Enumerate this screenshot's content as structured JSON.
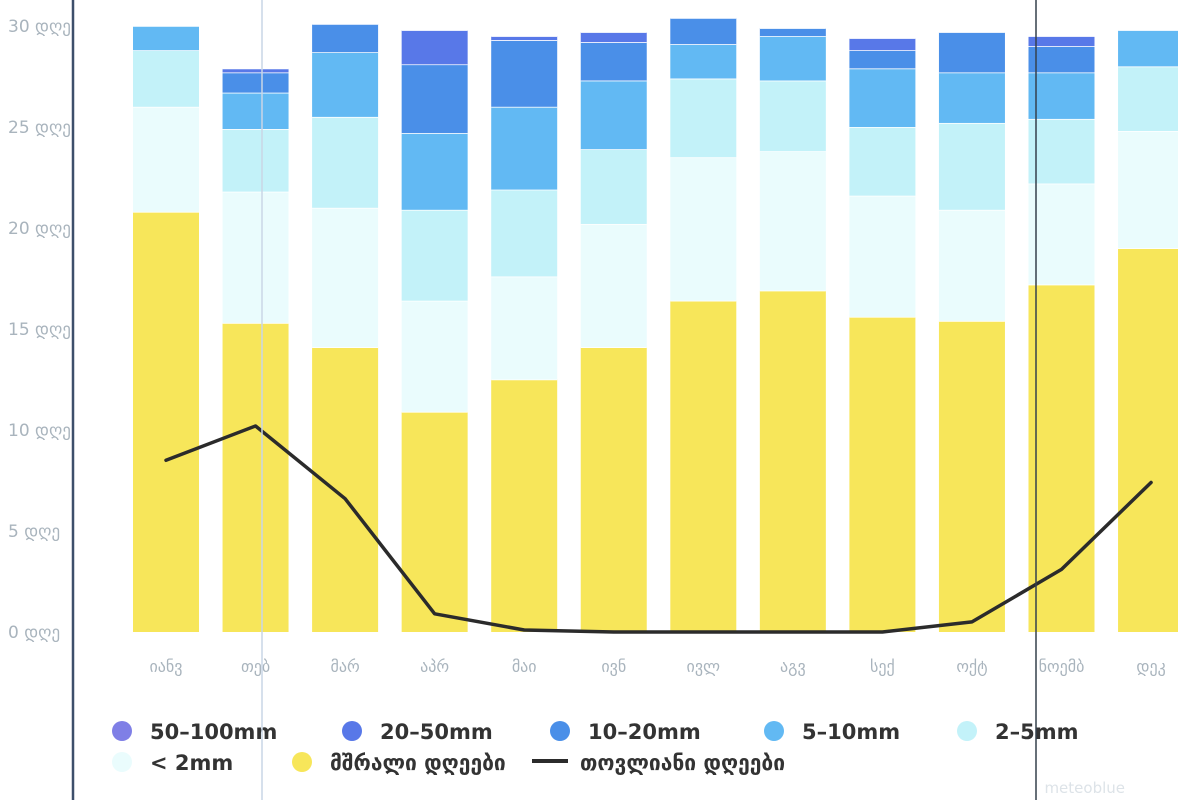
{
  "chart_data": {
    "type": "bar",
    "stacked": true,
    "categories": [
      "იანვ",
      "თებ",
      "მარ",
      "აპრ",
      "მაი",
      "ივნ",
      "ივლ",
      "აგვ",
      "სექ",
      "ოქტ",
      "ნოემბ",
      "დეკ"
    ],
    "y_tick_labels": [
      "0 დღე",
      "5 დღე",
      "10 დღე",
      "15 დღე",
      "20 დღე",
      "25 დღე",
      "30 დღე"
    ],
    "y_ticks": [
      0,
      5,
      10,
      15,
      20,
      25,
      30
    ],
    "ylim": [
      0,
      30
    ],
    "grid": false,
    "legend_position": "bottom",
    "series": [
      {
        "name": "მშრალი დღეები",
        "color": "#f7e65a",
        "values": [
          20.8,
          15.3,
          14.1,
          10.9,
          12.5,
          14.1,
          16.4,
          16.9,
          15.6,
          15.4,
          17.2,
          19.0
        ]
      },
      {
        "name": "< 2mm",
        "color": "#eafcfd",
        "values": [
          5.2,
          6.5,
          6.9,
          5.5,
          5.1,
          6.1,
          7.1,
          6.9,
          6.0,
          5.5,
          5.0,
          5.8
        ]
      },
      {
        "name": "2–5mm",
        "color": "#c3f2f9",
        "values": [
          2.8,
          3.1,
          4.5,
          4.5,
          4.3,
          3.7,
          3.9,
          3.5,
          3.4,
          4.3,
          3.2,
          3.2
        ]
      },
      {
        "name": "5–10mm",
        "color": "#62b9f3",
        "values": [
          1.2,
          1.8,
          3.2,
          3.8,
          4.1,
          3.4,
          1.7,
          2.2,
          2.9,
          2.5,
          2.3,
          1.8
        ]
      },
      {
        "name": "10–20mm",
        "color": "#4a8fe8",
        "values": [
          0.0,
          1.0,
          1.4,
          3.4,
          3.3,
          1.9,
          1.3,
          0.4,
          0.9,
          2.0,
          1.3,
          0.0
        ]
      },
      {
        "name": "20–50mm",
        "color": "#5878e8",
        "values": [
          0.0,
          0.2,
          0.0,
          1.7,
          0.2,
          0.5,
          0.0,
          0.0,
          0.6,
          0.0,
          0.5,
          0.0
        ]
      },
      {
        "name": "50–100mm",
        "color": "#7f7fe6",
        "values": [
          0.0,
          0.0,
          0.0,
          0.0,
          0.0,
          0.0,
          0.0,
          0.0,
          0.0,
          0.0,
          0.0,
          0.0
        ]
      }
    ],
    "line_series": {
      "name": "თოვლიანი დღეები",
      "color": "#2b2b2b",
      "values": [
        8.5,
        10.2,
        6.6,
        0.9,
        0.1,
        0.0,
        0.0,
        0.0,
        0.0,
        0.5,
        3.1,
        7.4
      ]
    }
  },
  "legend": {
    "items": [
      {
        "label": "50–100mm",
        "color": "#7f7fe6",
        "kind": "dot"
      },
      {
        "label": "20–50mm",
        "color": "#5878e8",
        "kind": "dot"
      },
      {
        "label": "10–20mm",
        "color": "#4a8fe8",
        "kind": "dot"
      },
      {
        "label": "5–10mm",
        "color": "#62b9f3",
        "kind": "dot"
      },
      {
        "label": "2–5mm",
        "color": "#c3f2f9",
        "kind": "dot"
      },
      {
        "label": "< 2mm",
        "color": "#eafcfd",
        "kind": "dot"
      },
      {
        "label": "მშრალი დღეები",
        "color": "#f7e65a",
        "kind": "dot"
      },
      {
        "label": "თოვლიანი დღეები",
        "color": "#2b2b2b",
        "kind": "line"
      }
    ]
  },
  "watermark": "meteoblue"
}
